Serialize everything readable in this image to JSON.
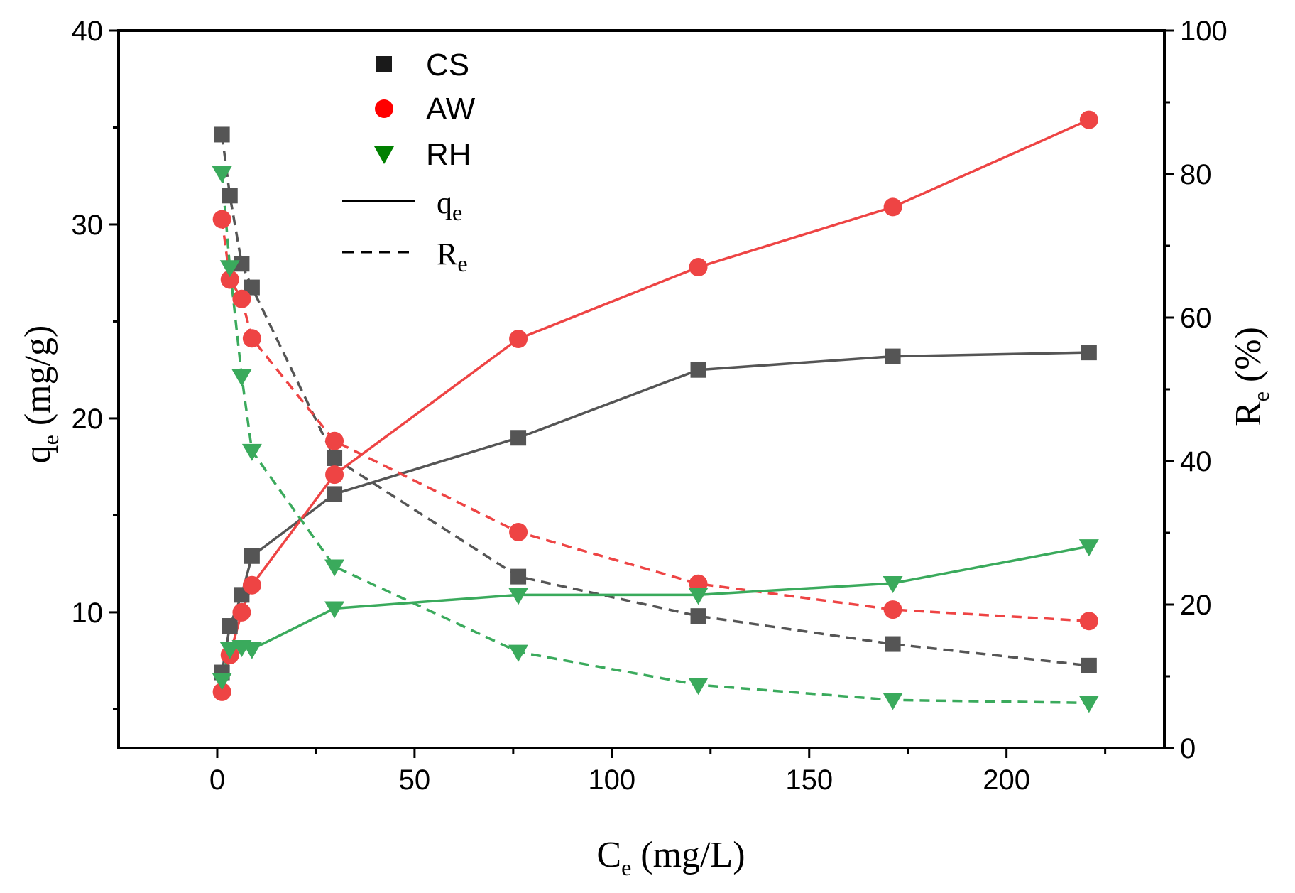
{
  "chart_data": {
    "type": "line",
    "x_label": {
      "main": "C",
      "sub": "e",
      "unit": " (mg/L)"
    },
    "y_left_label": {
      "main": "q",
      "sub": "e",
      "unit": " (mg/g)"
    },
    "y_right_label": {
      "main": "R",
      "sub": "e",
      "unit": " (%)"
    },
    "x_range": [
      -25,
      240
    ],
    "y_left_range": [
      3,
      40
    ],
    "y_right_range": [
      0,
      100
    ],
    "x_ticks": [
      0,
      50,
      100,
      150,
      200
    ],
    "y_left_ticks": [
      10,
      20,
      30,
      40
    ],
    "y_right_ticks": [
      0,
      20,
      40,
      60,
      80,
      100
    ],
    "legend": {
      "position": "top-left",
      "markers": [
        {
          "name": "CS",
          "color": "#1a1a1a",
          "marker": "square"
        },
        {
          "name": "AW",
          "color": "#ff0000",
          "marker": "circle"
        },
        {
          "name": "RH",
          "color": "#008000",
          "marker": "triangle-down"
        }
      ],
      "lines": [
        {
          "label_main": "q",
          "label_sub": "e",
          "style": "solid"
        },
        {
          "label_main": "R",
          "label_sub": "e",
          "style": "dashed"
        }
      ]
    },
    "series": [
      {
        "name": "CS",
        "color": "#555555",
        "marker": "square",
        "qe": {
          "x": [
            1.2,
            3.2,
            6.2,
            8.8,
            29.7,
            76.3,
            121.9,
            171.2,
            220.9
          ],
          "y": [
            6.9,
            9.3,
            10.9,
            12.9,
            16.1,
            19.0,
            22.5,
            23.2,
            23.4
          ]
        },
        "Re": {
          "x": [
            1.2,
            3.2,
            6.2,
            8.8,
            29.7,
            76.3,
            121.9,
            171.2,
            220.9
          ],
          "y": [
            85.5,
            77.0,
            67.5,
            64.2,
            40.4,
            23.9,
            18.4,
            14.5,
            11.5
          ]
        }
      },
      {
        "name": "AW",
        "color": "#ee4444",
        "marker": "circle",
        "qe": {
          "x": [
            1.2,
            3.2,
            6.2,
            8.8,
            29.7,
            76.3,
            121.9,
            171.2,
            220.9
          ],
          "y": [
            5.9,
            7.8,
            10.0,
            11.4,
            17.1,
            24.1,
            27.8,
            30.9,
            35.4
          ]
        },
        "Re": {
          "x": [
            1.2,
            3.2,
            6.2,
            8.8,
            29.7,
            76.3,
            121.9,
            171.2,
            220.9
          ],
          "y": [
            73.7,
            65.3,
            62.6,
            57.1,
            42.8,
            30.1,
            22.9,
            19.3,
            17.7
          ]
        }
      },
      {
        "name": "RH",
        "color": "#3aaa5c",
        "marker": "triangle-down",
        "qe": {
          "x": [
            1.2,
            3.2,
            6.2,
            8.8,
            29.7,
            76.3,
            121.9,
            171.2,
            220.9
          ],
          "y": [
            6.5,
            8.1,
            8.2,
            8.1,
            10.2,
            10.9,
            10.9,
            11.5,
            13.4
          ]
        },
        "Re": {
          "x": [
            1.2,
            3.2,
            6.2,
            8.8,
            29.7,
            76.3,
            121.9,
            171.2,
            220.9
          ],
          "y": [
            80.1,
            67.0,
            51.8,
            41.4,
            25.3,
            13.4,
            8.8,
            6.7,
            6.3
          ]
        }
      }
    ]
  }
}
